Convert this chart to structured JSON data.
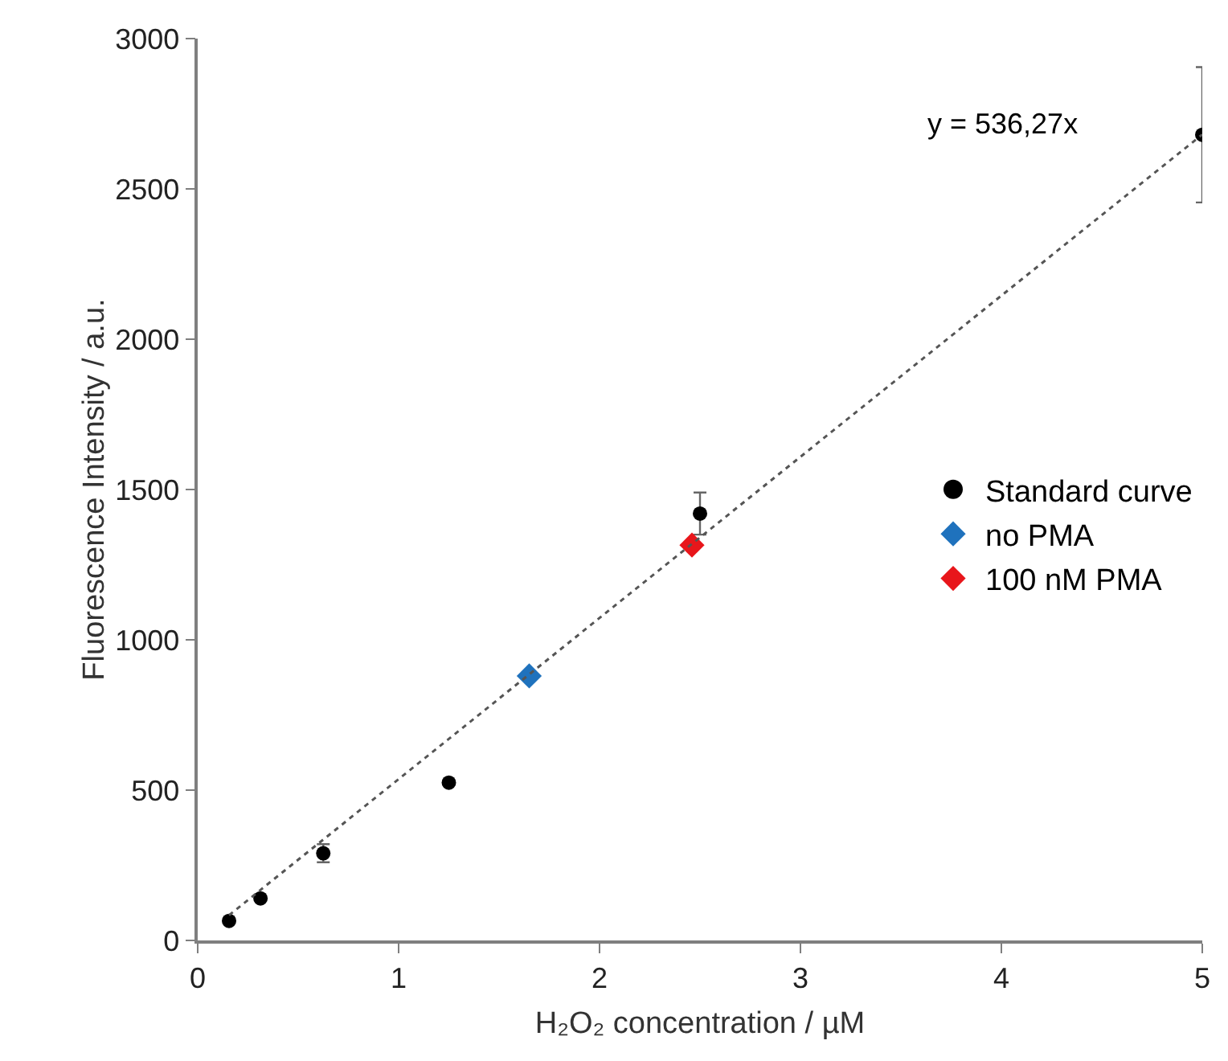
{
  "chart_data": {
    "type": "scatter",
    "xlabel": "H₂O₂ concentration / µM",
    "ylabel": "Fluorescence Intensity / a.u.",
    "xlim": [
      0,
      5
    ],
    "xticks": [
      0,
      1,
      2,
      3,
      4,
      5
    ],
    "ylim": [
      0,
      3000
    ],
    "yticks": [
      0,
      500,
      1000,
      1500,
      2000,
      2500,
      3000
    ],
    "grid": false,
    "legend": "right",
    "annotations": [
      "y = 536,27x"
    ],
    "series": [
      {
        "name": "Standard curve",
        "color": "#000000",
        "marker": "circle",
        "x": [
          0.156,
          0.3125,
          0.625,
          1.25,
          2.5,
          5
        ],
        "values": [
          65,
          140,
          290,
          525,
          1420,
          2680
        ],
        "errors": [
          null,
          null,
          30,
          null,
          70,
          225
        ]
      },
      {
        "name": "no PMA",
        "color": "#1f72bd",
        "marker": "diamond",
        "x": [
          1.65
        ],
        "values": [
          880
        ]
      },
      {
        "name": "100 nM PMA",
        "color": "#e8161b",
        "marker": "diamond",
        "x": [
          2.46
        ],
        "values": [
          1315
        ]
      },
      {
        "type": "line",
        "color": "#555555",
        "marker": "none",
        "line_style": "dotted",
        "x": [
          0.156,
          5
        ],
        "values": [
          84,
          2681
        ]
      }
    ]
  }
}
